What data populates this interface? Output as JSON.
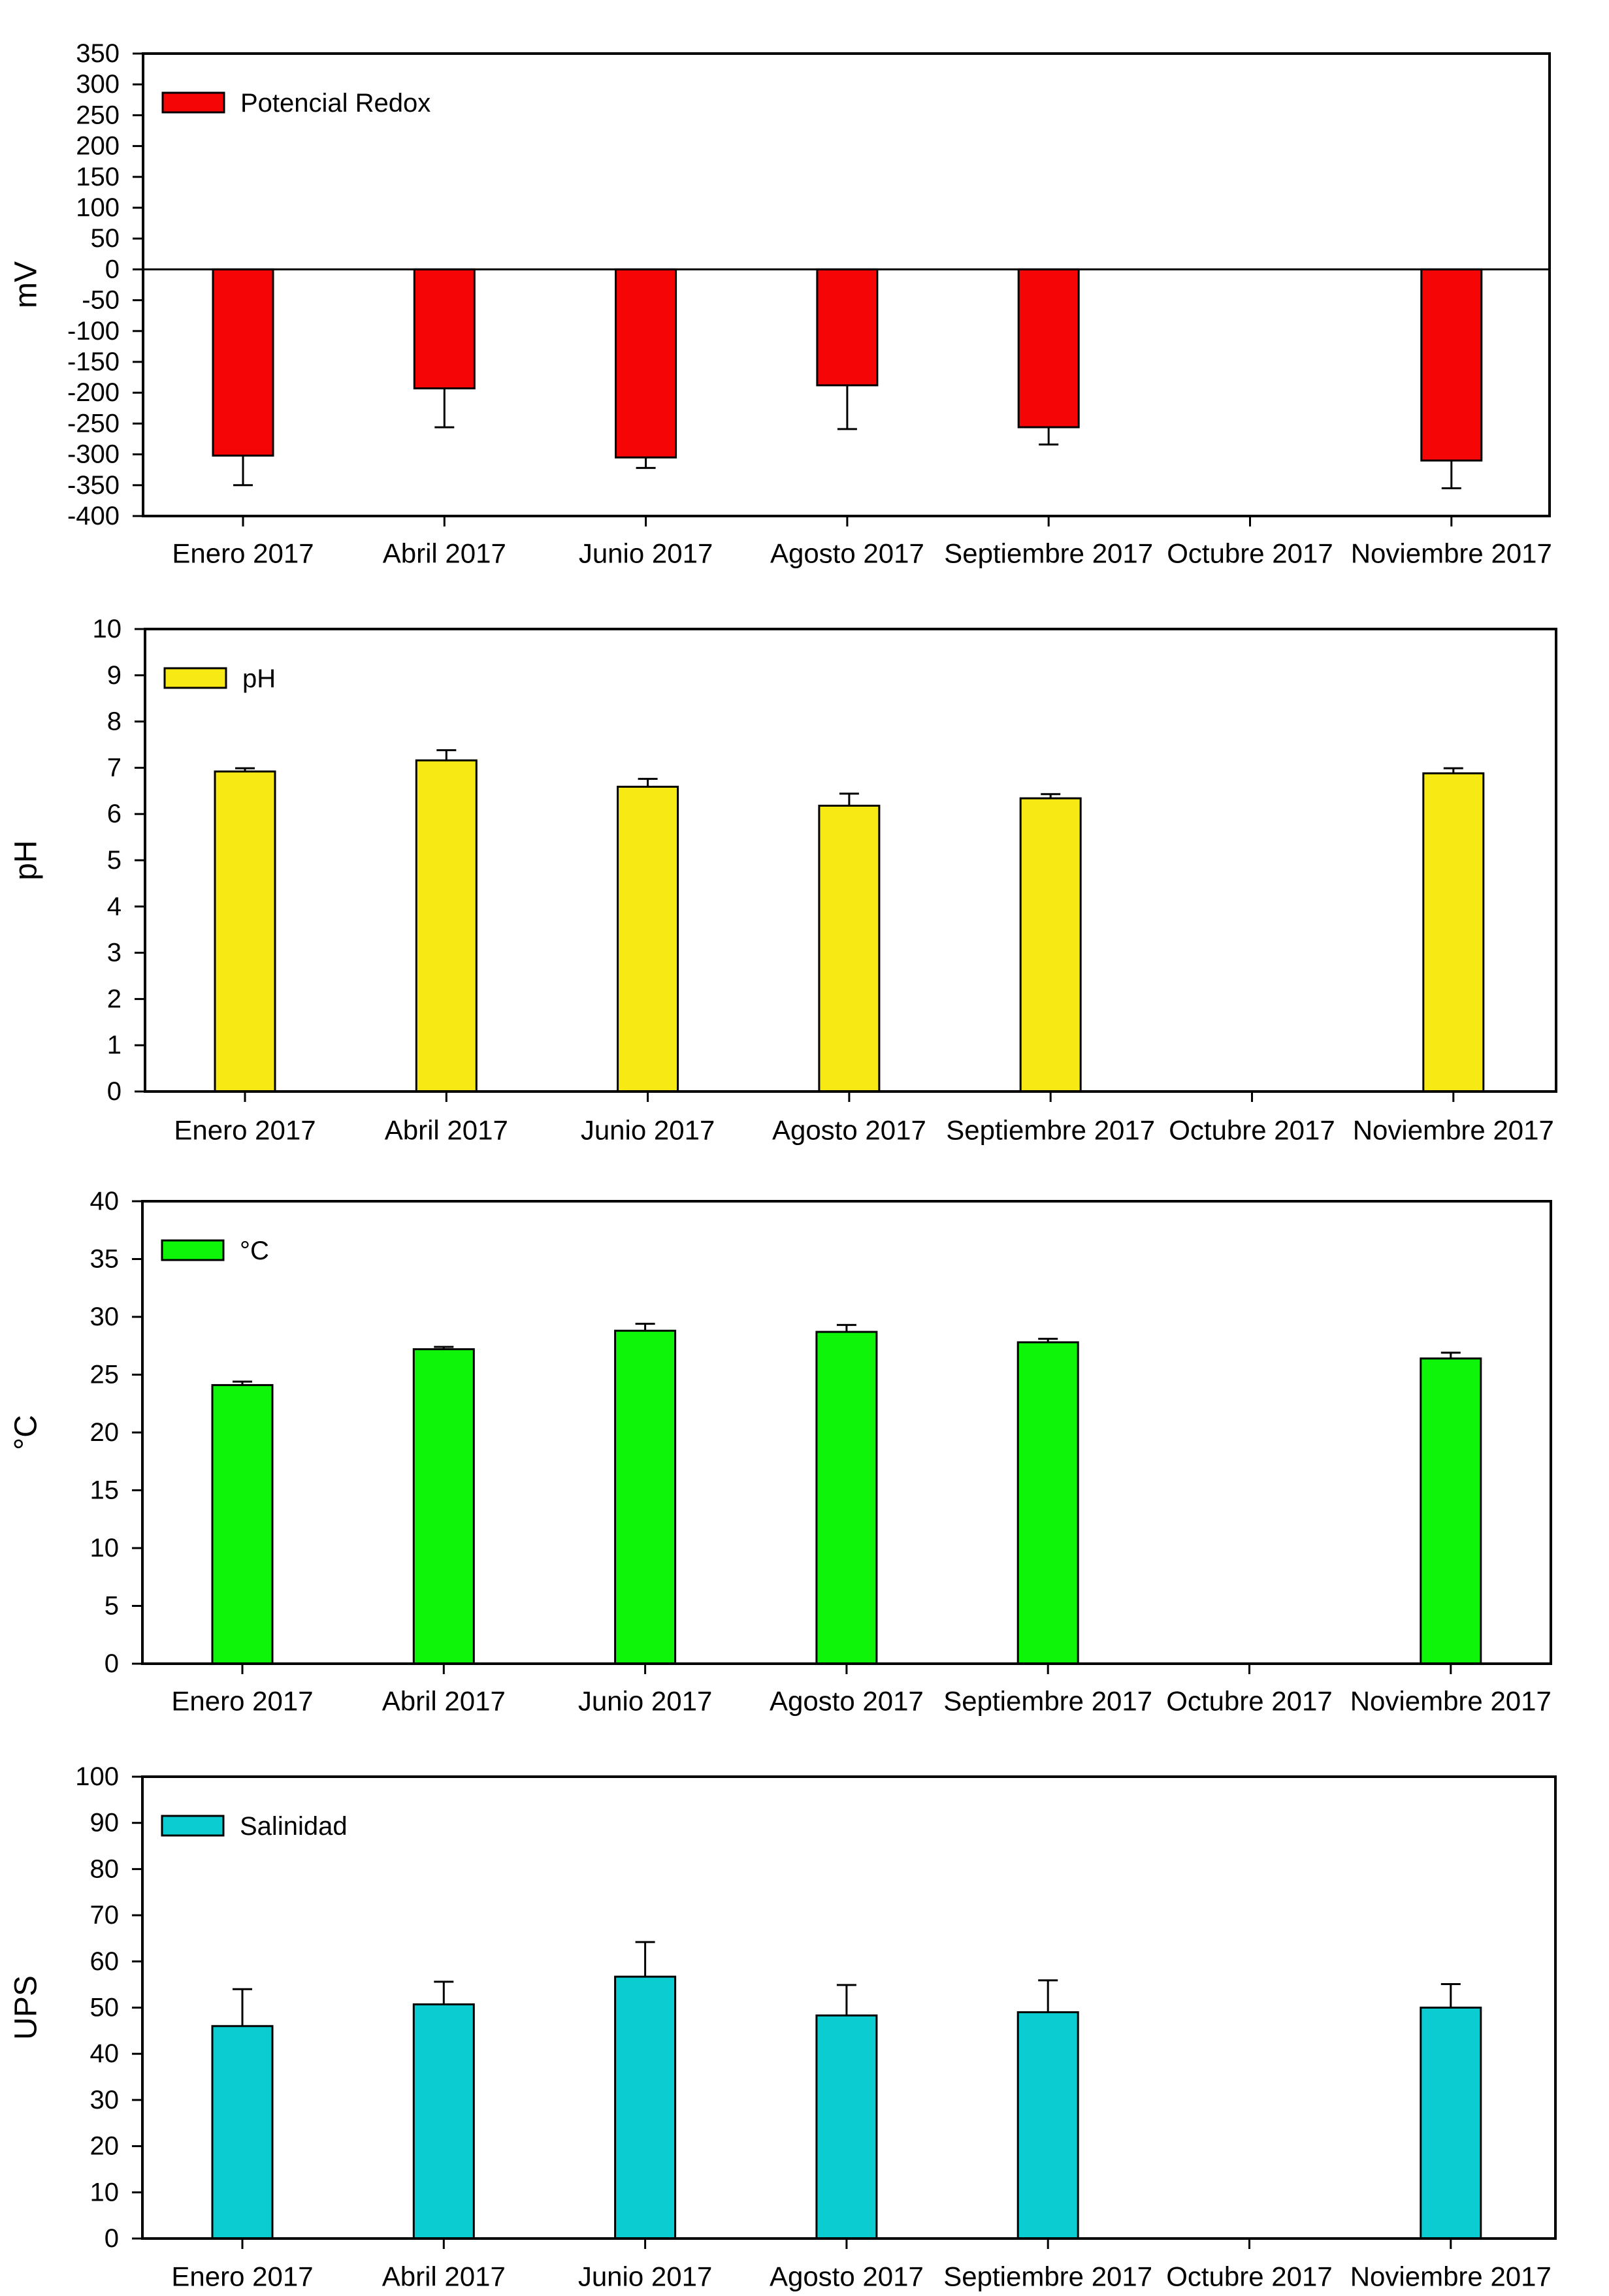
{
  "chart_data": [
    {
      "type": "bar",
      "id": "redox",
      "title": "",
      "legend": "Potencial Redox",
      "legend_position": "top-left",
      "xlabel": "",
      "ylabel": "mV",
      "ylim": [
        -400,
        350
      ],
      "yticks": [
        -400,
        -350,
        -300,
        -250,
        -200,
        -150,
        -100,
        -50,
        0,
        50,
        100,
        150,
        200,
        250,
        300,
        350
      ],
      "color": "#f50505",
      "categories": [
        "Enero 2017",
        "Abril 2017",
        "Junio 2017",
        "Agosto 2017",
        "Septiembre 2017",
        "Octubre 2017",
        "Noviembre 2017"
      ],
      "values": [
        -302,
        -193,
        -305,
        -188,
        -256,
        null,
        -310
      ],
      "error_ends": [
        -350,
        -256,
        -322,
        -259,
        -284,
        null,
        -355
      ],
      "zero_line": true,
      "grid": false
    },
    {
      "type": "bar",
      "id": "ph",
      "title": "",
      "legend": "pH",
      "legend_position": "top-left",
      "xlabel": "",
      "ylabel": "pH",
      "ylim": [
        0,
        10
      ],
      "yticks": [
        0,
        1,
        2,
        3,
        4,
        5,
        6,
        7,
        8,
        9,
        10
      ],
      "color": "#f7e914",
      "categories": [
        "Enero 2017",
        "Abril 2017",
        "Junio 2017",
        "Agosto 2017",
        "Septiembre 2017",
        "Octubre 2017",
        "Noviembre 2017"
      ],
      "values": [
        6.92,
        7.16,
        6.59,
        6.18,
        6.34,
        null,
        6.88
      ],
      "error_ends": [
        6.99,
        7.38,
        6.76,
        6.44,
        6.43,
        null,
        6.99
      ],
      "zero_line": false,
      "grid": false
    },
    {
      "type": "bar",
      "id": "temperature",
      "title": "",
      "legend": "°C",
      "legend_position": "top-left",
      "xlabel": "",
      "ylabel": "°C",
      "ylim": [
        0,
        40
      ],
      "yticks": [
        0,
        5,
        10,
        15,
        20,
        25,
        30,
        35,
        40
      ],
      "color": "#0ef50a",
      "categories": [
        "Enero 2017",
        "Abril 2017",
        "Junio 2017",
        "Agosto 2017",
        "Septiembre 2017",
        "Octubre 2017",
        "Noviembre 2017"
      ],
      "values": [
        24.1,
        27.2,
        28.8,
        28.7,
        27.8,
        null,
        26.4
      ],
      "error_ends": [
        24.4,
        27.4,
        29.4,
        29.3,
        28.1,
        null,
        26.9
      ],
      "zero_line": false,
      "grid": false
    },
    {
      "type": "bar",
      "id": "salinity",
      "title": "",
      "legend": "Salinidad",
      "legend_position": "top-left",
      "xlabel": "",
      "ylabel": "UPS",
      "ylim": [
        0,
        100
      ],
      "yticks": [
        0,
        10,
        20,
        30,
        40,
        50,
        60,
        70,
        80,
        90,
        100
      ],
      "color": "#0bcdd1",
      "categories": [
        "Enero 2017",
        "Abril 2017",
        "Junio 2017",
        "Agosto 2017",
        "Septiembre 2017",
        "Octubre 2017",
        "Noviembre 2017"
      ],
      "values": [
        46.0,
        50.7,
        56.7,
        48.3,
        49.0,
        null,
        50.0
      ],
      "error_ends": [
        54.0,
        55.6,
        64.2,
        54.9,
        55.9,
        null,
        55.1
      ],
      "zero_line": false,
      "grid": false
    }
  ]
}
